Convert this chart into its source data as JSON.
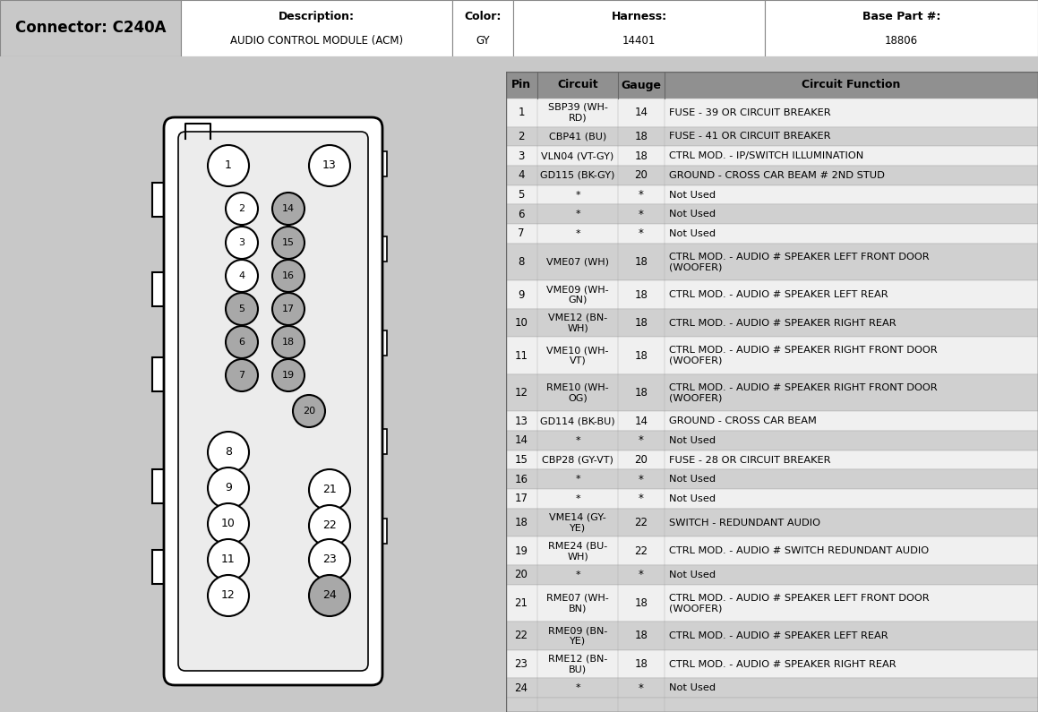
{
  "connector": "Connector: C240A",
  "description_label": "Description:",
  "description_value": "AUDIO CONTROL MODULE (ACM)",
  "color_label": "Color:",
  "color_value": "GY",
  "harness_label": "Harness:",
  "harness_value": "14401",
  "base_part_label": "Base Part #:",
  "base_part_value": "18806",
  "bg_color": "#c8c8c8",
  "connector_bg": "#b8b8b8",
  "white": "#ffffff",
  "table_hdr_bg": "#909090",
  "row_shaded": "#d0d0d0",
  "row_white": "#f0f0f0",
  "pin_gray": "#a8a8a8",
  "pins": [
    {
      "pin": "1",
      "circuit": "SBP39 (WH-\nRD)",
      "gauge": "14",
      "function": "FUSE - 39 OR CIRCUIT BREAKER"
    },
    {
      "pin": "2",
      "circuit": "CBP41 (BU)",
      "gauge": "18",
      "function": "FUSE - 41 OR CIRCUIT BREAKER"
    },
    {
      "pin": "3",
      "circuit": "VLN04 (VT-GY)",
      "gauge": "18",
      "function": "CTRL MOD. - IP/SWITCH ILLUMINATION"
    },
    {
      "pin": "4",
      "circuit": "GD115 (BK-GY)",
      "gauge": "20",
      "function": "GROUND - CROSS CAR BEAM # 2ND STUD"
    },
    {
      "pin": "5",
      "circuit": "*",
      "gauge": "*",
      "function": "Not Used"
    },
    {
      "pin": "6",
      "circuit": "*",
      "gauge": "*",
      "function": "Not Used"
    },
    {
      "pin": "7",
      "circuit": "*",
      "gauge": "*",
      "function": "Not Used"
    },
    {
      "pin": "8",
      "circuit": "VME07 (WH)",
      "gauge": "18",
      "function": "CTRL MOD. - AUDIO # SPEAKER LEFT FRONT DOOR\n(WOOFER)"
    },
    {
      "pin": "9",
      "circuit": "VME09 (WH-\nGN)",
      "gauge": "18",
      "function": "CTRL MOD. - AUDIO # SPEAKER LEFT REAR"
    },
    {
      "pin": "10",
      "circuit": "VME12 (BN-\nWH)",
      "gauge": "18",
      "function": "CTRL MOD. - AUDIO # SPEAKER RIGHT REAR"
    },
    {
      "pin": "11",
      "circuit": "VME10 (WH-\nVT)",
      "gauge": "18",
      "function": "CTRL MOD. - AUDIO # SPEAKER RIGHT FRONT DOOR\n(WOOFER)"
    },
    {
      "pin": "12",
      "circuit": "RME10 (WH-\nOG)",
      "gauge": "18",
      "function": "CTRL MOD. - AUDIO # SPEAKER RIGHT FRONT DOOR\n(WOOFER)"
    },
    {
      "pin": "13",
      "circuit": "GD114 (BK-BU)",
      "gauge": "14",
      "function": "GROUND - CROSS CAR BEAM"
    },
    {
      "pin": "14",
      "circuit": "*",
      "gauge": "*",
      "function": "Not Used"
    },
    {
      "pin": "15",
      "circuit": "CBP28 (GY-VT)",
      "gauge": "20",
      "function": "FUSE - 28 OR CIRCUIT BREAKER"
    },
    {
      "pin": "16",
      "circuit": "*",
      "gauge": "*",
      "function": "Not Used"
    },
    {
      "pin": "17",
      "circuit": "*",
      "gauge": "*",
      "function": "Not Used"
    },
    {
      "pin": "18",
      "circuit": "VME14 (GY-\nYE)",
      "gauge": "22",
      "function": "SWITCH - REDUNDANT AUDIO"
    },
    {
      "pin": "19",
      "circuit": "RME24 (BU-\nWH)",
      "gauge": "22",
      "function": "CTRL MOD. - AUDIO # SWITCH REDUNDANT AUDIO"
    },
    {
      "pin": "20",
      "circuit": "*",
      "gauge": "*",
      "function": "Not Used"
    },
    {
      "pin": "21",
      "circuit": "RME07 (WH-\nBN)",
      "gauge": "18",
      "function": "CTRL MOD. - AUDIO # SPEAKER LEFT FRONT DOOR\n(WOOFER)"
    },
    {
      "pin": "22",
      "circuit": "RME09 (BN-\nYE)",
      "gauge": "18",
      "function": "CTRL MOD. - AUDIO # SPEAKER LEFT REAR"
    },
    {
      "pin": "23",
      "circuit": "RME12 (BN-\nBU)",
      "gauge": "18",
      "function": "CTRL MOD. - AUDIO # SPEAKER RIGHT REAR"
    },
    {
      "pin": "24",
      "circuit": "*",
      "gauge": "*",
      "function": "Not Used"
    }
  ],
  "gray_pins": [
    5,
    6,
    7,
    14,
    15,
    16,
    17,
    18,
    19,
    20,
    24
  ],
  "shaded_rows": [
    2,
    4,
    6,
    8,
    10,
    12,
    14,
    16,
    18,
    20,
    22,
    24
  ],
  "tall_fn_rows": [
    8,
    11,
    12,
    21
  ],
  "tall_ci_rows": [
    1,
    9,
    10,
    18,
    19,
    22,
    23
  ]
}
